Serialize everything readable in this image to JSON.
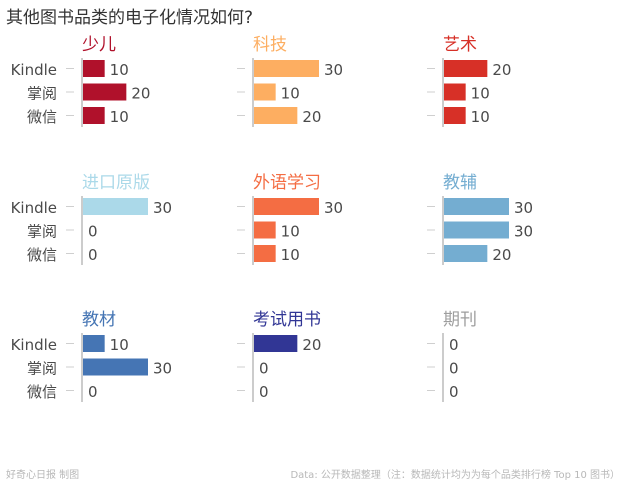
{
  "title": "其他图书品类的电子化情况如何?",
  "footer_left": "好奇心日报 制图",
  "footer_right": "Data: 公开数据整理（注：数据统计均为为每个品类排行榜 Top 10 图书）",
  "chart_data": {
    "type": "bar",
    "orientation": "horizontal",
    "layout": "small-multiples 3x3",
    "categories": [
      "Kindle",
      "掌阅",
      "微信"
    ],
    "xlim": [
      0,
      30
    ],
    "grid": false,
    "panels": [
      {
        "title": "少儿",
        "color": "#b0112b",
        "values": [
          10,
          20,
          10
        ]
      },
      {
        "title": "科技",
        "color": "#fdae61",
        "values": [
          30,
          10,
          20
        ]
      },
      {
        "title": "艺术",
        "color": "#d73027",
        "values": [
          20,
          10,
          10
        ]
      },
      {
        "title": "进口原版",
        "color": "#abd9e9",
        "values": [
          30,
          0,
          0
        ]
      },
      {
        "title": "外语学习",
        "color": "#f46d43",
        "values": [
          30,
          10,
          10
        ]
      },
      {
        "title": "教辅",
        "color": "#74add1",
        "values": [
          30,
          30,
          20
        ]
      },
      {
        "title": "教材",
        "color": "#4575b4",
        "values": [
          10,
          30,
          0
        ]
      },
      {
        "title": "考试用书",
        "color": "#313695",
        "values": [
          20,
          0,
          0
        ]
      },
      {
        "title": "期刊",
        "color": "#9e9e9e",
        "values": [
          0,
          0,
          0
        ]
      }
    ]
  }
}
